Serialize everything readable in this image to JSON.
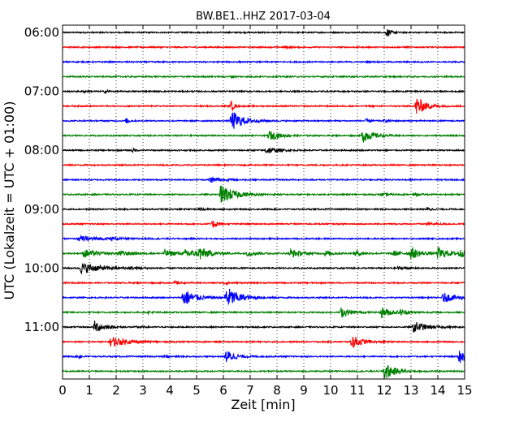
{
  "chart_data": {
    "type": "line",
    "chart_subtype": "helicorder / dayplot seismogram",
    "title": "BW.BE1..HHZ 2017-03-04",
    "xlabel": "Zeit  [min]",
    "ylabel": "UTC (Lokalzeit = UTC + 01:00)",
    "xlim": [
      0,
      15
    ],
    "x_ticks": [
      "0",
      "1",
      "2",
      "3",
      "4",
      "5",
      "6",
      "7",
      "8",
      "9",
      "10",
      "11",
      "12",
      "13",
      "14",
      "15"
    ],
    "y_tick_labels": [
      "06:00",
      "07:00",
      "08:00",
      "09:00",
      "10:00",
      "11:00"
    ],
    "row_interval_minutes": 15,
    "grid": "vertical dotted lines at each minute",
    "colors": [
      "#000000",
      "#ff0000",
      "#0000ff",
      "#008000"
    ],
    "traces": [
      {
        "start": "06:00",
        "events": [
          {
            "t": 12.1,
            "amp": 0.45,
            "w": 0.2
          }
        ]
      },
      {
        "start": "06:15",
        "events": [
          {
            "t": 8.3,
            "amp": 0.12,
            "w": 0.2
          }
        ]
      },
      {
        "start": "06:30",
        "events": []
      },
      {
        "start": "06:45",
        "events": [
          {
            "t": 6.3,
            "amp": 0.12,
            "w": 0.1
          }
        ]
      },
      {
        "start": "07:00",
        "events": [
          {
            "t": 0.8,
            "amp": 0.12,
            "w": 0.15
          },
          {
            "t": 1.6,
            "amp": 0.22,
            "w": 0.12
          }
        ]
      },
      {
        "start": "07:15",
        "events": [
          {
            "t": 6.3,
            "amp": 0.55,
            "w": 0.15
          },
          {
            "t": 13.2,
            "amp": 1.05,
            "w": 0.45
          }
        ]
      },
      {
        "start": "07:30",
        "events": [
          {
            "t": 2.4,
            "amp": 0.35,
            "w": 0.12
          },
          {
            "t": 6.3,
            "amp": 1.15,
            "w": 0.55
          },
          {
            "t": 11.3,
            "amp": 0.15,
            "w": 0.3
          },
          {
            "t": 12.0,
            "amp": 0.12,
            "w": 0.3
          }
        ]
      },
      {
        "start": "07:45",
        "events": [
          {
            "t": 7.7,
            "amp": 0.5,
            "w": 0.55
          },
          {
            "t": 11.2,
            "amp": 0.75,
            "w": 0.5
          }
        ]
      },
      {
        "start": "08:00",
        "events": [
          {
            "t": 2.6,
            "amp": 0.2,
            "w": 0.12
          },
          {
            "t": 7.6,
            "amp": 0.4,
            "w": 0.5
          }
        ]
      },
      {
        "start": "08:15",
        "events": []
      },
      {
        "start": "08:30",
        "events": [
          {
            "t": 5.5,
            "amp": 0.32,
            "w": 0.5
          }
        ]
      },
      {
        "start": "08:45",
        "events": [
          {
            "t": 5.9,
            "amp": 1.05,
            "w": 0.7
          },
          {
            "t": 11.9,
            "amp": 0.15,
            "w": 0.3
          },
          {
            "t": 13.1,
            "amp": 0.12,
            "w": 0.3
          }
        ]
      },
      {
        "start": "09:00",
        "events": [
          {
            "t": 5.1,
            "amp": 0.15,
            "w": 0.3
          },
          {
            "t": 13.6,
            "amp": 0.2,
            "w": 0.2
          }
        ]
      },
      {
        "start": "09:15",
        "events": [
          {
            "t": 5.6,
            "amp": 0.42,
            "w": 0.3
          },
          {
            "t": 13.6,
            "amp": 0.12,
            "w": 0.5
          }
        ]
      },
      {
        "start": "09:30",
        "events": [
          {
            "t": 0.6,
            "amp": 0.25,
            "w": 1.2
          },
          {
            "t": 1.8,
            "amp": 0.12,
            "w": 0.3
          }
        ]
      },
      {
        "start": "09:45",
        "events": [
          {
            "t": 0.8,
            "amp": 0.45,
            "w": 0.6
          },
          {
            "t": 2.1,
            "amp": 0.3,
            "w": 0.6
          },
          {
            "t": 3.8,
            "amp": 0.35,
            "w": 0.7
          },
          {
            "t": 4.6,
            "amp": 0.5,
            "w": 0.5
          },
          {
            "t": 5.1,
            "amp": 0.65,
            "w": 0.5
          },
          {
            "t": 6.9,
            "amp": 0.25,
            "w": 0.5
          },
          {
            "t": 8.5,
            "amp": 0.5,
            "w": 0.5
          },
          {
            "t": 9.8,
            "amp": 0.3,
            "w": 0.4
          },
          {
            "t": 10.9,
            "amp": 0.3,
            "w": 0.4
          },
          {
            "t": 12.3,
            "amp": 0.3,
            "w": 0.5
          },
          {
            "t": 13.0,
            "amp": 0.6,
            "w": 0.5
          },
          {
            "t": 14.0,
            "amp": 0.6,
            "w": 0.6
          },
          {
            "t": 14.8,
            "amp": 0.4,
            "w": 0.3
          }
        ]
      },
      {
        "start": "10:00",
        "events": [
          {
            "t": 0.7,
            "amp": 0.6,
            "w": 0.9
          },
          {
            "t": 2.5,
            "amp": 0.1,
            "w": 0.5
          },
          {
            "t": 12.5,
            "amp": 0.12,
            "w": 0.4
          }
        ]
      },
      {
        "start": "10:15",
        "events": [
          {
            "t": 4.2,
            "amp": 0.15,
            "w": 0.3
          },
          {
            "t": 6.0,
            "amp": 0.15,
            "w": 0.3
          }
        ]
      },
      {
        "start": "10:30",
        "events": [
          {
            "t": 4.5,
            "amp": 1.05,
            "w": 0.55
          },
          {
            "t": 6.1,
            "amp": 1.25,
            "w": 0.6
          },
          {
            "t": 14.2,
            "amp": 0.5,
            "w": 0.7
          }
        ]
      },
      {
        "start": "10:45",
        "events": [
          {
            "t": 3.2,
            "amp": 0.12,
            "w": 0.2
          },
          {
            "t": 10.4,
            "amp": 0.5,
            "w": 0.5
          },
          {
            "t": 11.9,
            "amp": 0.55,
            "w": 0.55
          },
          {
            "t": 12.6,
            "amp": 0.25,
            "w": 0.3
          }
        ]
      },
      {
        "start": "11:00",
        "events": [
          {
            "t": 1.2,
            "amp": 0.65,
            "w": 0.45
          },
          {
            "t": 13.1,
            "amp": 0.65,
            "w": 0.55
          },
          {
            "t": 2.8,
            "amp": 0.1,
            "w": 0.3
          }
        ]
      },
      {
        "start": "11:15",
        "events": [
          {
            "t": 1.8,
            "amp": 0.55,
            "w": 0.8
          },
          {
            "t": 10.8,
            "amp": 0.75,
            "w": 0.45
          }
        ]
      },
      {
        "start": "11:30",
        "events": [
          {
            "t": 0.6,
            "amp": 0.15,
            "w": 0.2
          },
          {
            "t": 6.1,
            "amp": 0.7,
            "w": 0.45
          },
          {
            "t": 14.8,
            "amp": 0.8,
            "w": 0.35
          },
          {
            "t": 3.8,
            "amp": 0.12,
            "w": 0.3
          }
        ]
      },
      {
        "start": "11:45",
        "events": [
          {
            "t": 12.0,
            "amp": 1.0,
            "w": 0.5
          }
        ]
      }
    ]
  }
}
